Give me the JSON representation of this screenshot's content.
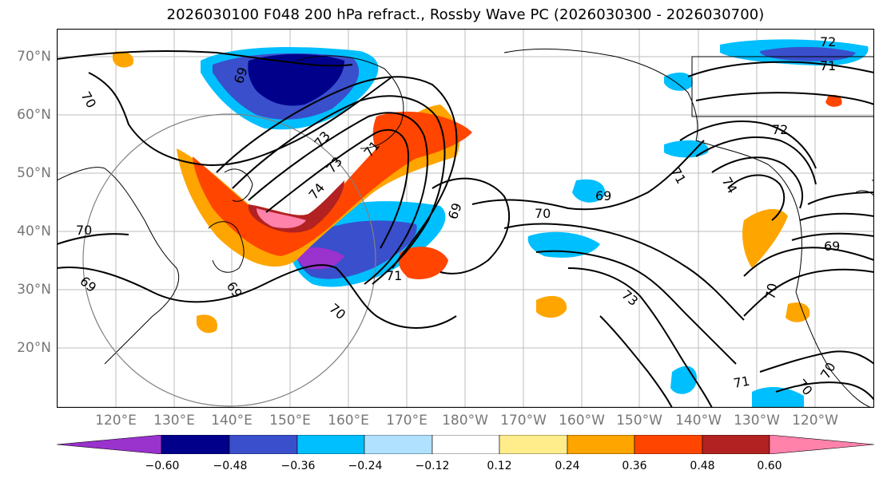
{
  "title": "2026030100 F048 200 hPa refract., Rossby Wave PC (2026030300 - 2026030700)",
  "lat_labels": [
    "70°N",
    "60°N",
    "50°N",
    "40°N",
    "30°N",
    "20°N"
  ],
  "lon_labels": [
    "120°E",
    "130°E",
    "140°E",
    "150°E",
    "160°E",
    "170°E",
    "180°W",
    "170°W",
    "160°W",
    "150°W",
    "140°W",
    "130°W",
    "120°W"
  ],
  "contour_labels": [
    "72",
    "71",
    "70",
    "69",
    "72",
    "74",
    "71",
    "69",
    "70",
    "69",
    "69",
    "74",
    "73",
    "73",
    "71",
    "69",
    "70",
    "71",
    "73",
    "70",
    "71",
    "70",
    "70",
    "69",
    "70"
  ],
  "colorbar": {
    "colors": [
      "#9a32cd",
      "#00008b",
      "#3a4fcc",
      "#00bfff",
      "#b0e2ff",
      "#ffffff",
      "#ffec8b",
      "#ffa500",
      "#ff4500",
      "#b22222",
      "#ff82ab"
    ],
    "tick_labels": [
      "−0.60",
      "−0.48",
      "−0.36",
      "−0.24",
      "−0.12",
      "0.12",
      "0.24",
      "0.36",
      "0.48",
      "0.60"
    ]
  }
}
